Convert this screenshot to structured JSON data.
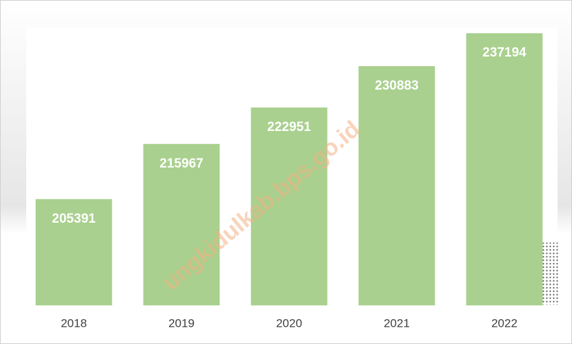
{
  "chart_data": {
    "type": "bar",
    "categories": [
      "2018",
      "2019",
      "2020",
      "2021",
      "2022"
    ],
    "values": [
      205391,
      215967,
      222951,
      230883,
      237194
    ],
    "color": "#a9d08e",
    "ylim": [
      185000,
      240000
    ],
    "watermark": "ungkidulkab.bps.go.id"
  }
}
